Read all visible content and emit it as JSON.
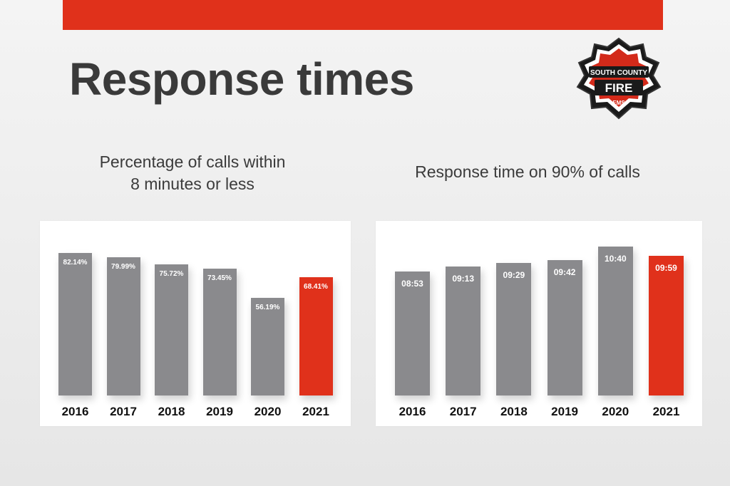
{
  "slide": {
    "title": "Response times",
    "accent_color": "#e0311b",
    "logo": {
      "line1": "SOUTH COUNTY",
      "line2": "FIRE",
      "line3": "EMS"
    }
  },
  "chart_data": [
    {
      "type": "bar",
      "title": "Percentage of calls within\n8 minutes or less",
      "categories": [
        "2016",
        "2017",
        "2018",
        "2019",
        "2020",
        "2021"
      ],
      "values": [
        82.14,
        79.99,
        75.72,
        73.45,
        56.19,
        68.41
      ],
      "labels": [
        "82.14%",
        "79.99%",
        "75.72%",
        "73.45%",
        "56.19%",
        "68.41%"
      ],
      "unit": "%",
      "highlight_index": 5,
      "colors": {
        "default": "#8a8a8d",
        "highlight": "#e0311b"
      },
      "ylim": [
        0,
        100
      ],
      "grid": false,
      "legend": "none"
    },
    {
      "type": "bar",
      "title": "Response time on 90% of calls",
      "categories": [
        "2016",
        "2017",
        "2018",
        "2019",
        "2020",
        "2021"
      ],
      "values": [
        8.883,
        9.217,
        9.483,
        9.7,
        10.667,
        9.983
      ],
      "labels": [
        "08:53",
        "09:13",
        "09:29",
        "09:42",
        "10:40",
        "09:59"
      ],
      "unit": "minutes",
      "highlight_index": 5,
      "colors": {
        "default": "#8a8a8d",
        "highlight": "#e0311b"
      },
      "ylim": [
        0,
        12.4
      ],
      "grid": false,
      "legend": "none"
    }
  ]
}
